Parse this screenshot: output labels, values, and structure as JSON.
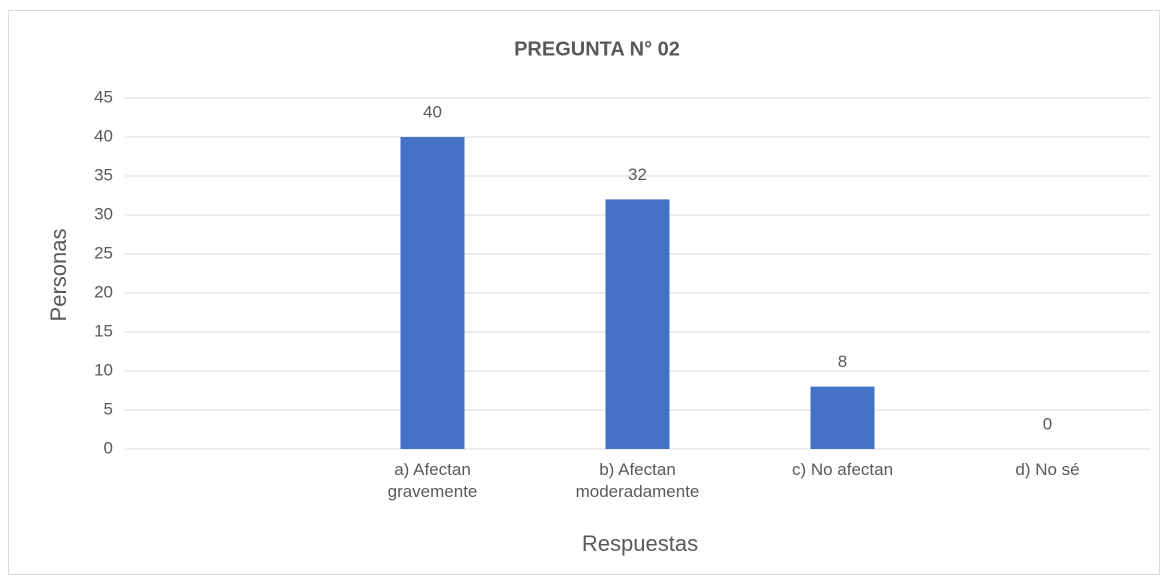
{
  "chart_data": {
    "type": "bar",
    "title": "PREGUNTA N° 02",
    "x_label": "Respuestas",
    "y_label": "Personas",
    "categories": [
      null,
      "a) Afectan gravemente",
      "b) Afectan moderadamente",
      "c) No afectan",
      "d) No sé"
    ],
    "values": [
      null,
      40,
      32,
      8,
      0
    ],
    "color": "#4472c4",
    "ylim": [
      0,
      45
    ],
    "yticks": [
      0,
      5,
      10,
      15,
      20,
      25,
      30,
      35,
      40,
      45
    ],
    "grid": true
  }
}
